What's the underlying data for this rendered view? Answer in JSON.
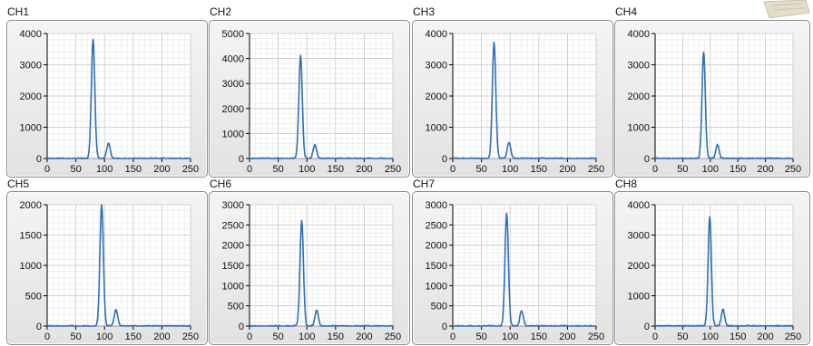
{
  "colors": {
    "trace": "#2e6fb5",
    "plot_bg": "#ffffff",
    "grid_major": "#c8c8c8",
    "grid_minor": "#e8e8e8",
    "axis": "#000000"
  },
  "chart_data": [
    {
      "type": "line",
      "channel": "CH1",
      "xlim": [
        0,
        250
      ],
      "ylim": [
        0,
        4000
      ],
      "xticks": [
        0,
        50,
        100,
        150,
        200,
        250
      ],
      "yticks": [
        0,
        1000,
        2000,
        3000,
        4000
      ],
      "peaks": [
        {
          "x": 80,
          "y": 3820,
          "w": 3.0
        },
        {
          "x": 107,
          "y": 500,
          "w": 3.0
        }
      ]
    },
    {
      "type": "line",
      "channel": "CH2",
      "xlim": [
        0,
        250
      ],
      "ylim": [
        0,
        5000
      ],
      "xticks": [
        0,
        50,
        100,
        150,
        200,
        250
      ],
      "yticks": [
        0,
        1000,
        2000,
        3000,
        4000,
        5000
      ],
      "peaks": [
        {
          "x": 89,
          "y": 4120,
          "w": 3.0
        },
        {
          "x": 114,
          "y": 560,
          "w": 3.0
        }
      ]
    },
    {
      "type": "line",
      "channel": "CH3",
      "xlim": [
        0,
        250
      ],
      "ylim": [
        0,
        4000
      ],
      "xticks": [
        0,
        50,
        100,
        150,
        200,
        250
      ],
      "yticks": [
        0,
        1000,
        2000,
        3000,
        4000
      ],
      "peaks": [
        {
          "x": 72,
          "y": 3720,
          "w": 3.0
        },
        {
          "x": 98,
          "y": 520,
          "w": 3.0
        }
      ]
    },
    {
      "type": "line",
      "channel": "CH4",
      "xlim": [
        0,
        250
      ],
      "ylim": [
        0,
        4000
      ],
      "xticks": [
        0,
        50,
        100,
        150,
        200,
        250
      ],
      "yticks": [
        0,
        1000,
        2000,
        3000,
        4000
      ],
      "peaks": [
        {
          "x": 88,
          "y": 3420,
          "w": 3.0
        },
        {
          "x": 113,
          "y": 440,
          "w": 3.0
        }
      ]
    },
    {
      "type": "line",
      "channel": "CH5",
      "xlim": [
        0,
        250
      ],
      "ylim": [
        0,
        2000
      ],
      "xticks": [
        0,
        50,
        100,
        150,
        200,
        250
      ],
      "yticks": [
        0,
        500,
        1000,
        1500,
        2000
      ],
      "peaks": [
        {
          "x": 95,
          "y": 2000,
          "w": 3.0
        },
        {
          "x": 120,
          "y": 280,
          "w": 3.0
        }
      ]
    },
    {
      "type": "line",
      "channel": "CH6",
      "xlim": [
        0,
        250
      ],
      "ylim": [
        0,
        3000
      ],
      "xticks": [
        0,
        50,
        100,
        150,
        200,
        250
      ],
      "yticks": [
        0,
        500,
        1000,
        1500,
        2000,
        2500,
        3000
      ],
      "peaks": [
        {
          "x": 91,
          "y": 2620,
          "w": 3.0
        },
        {
          "x": 117,
          "y": 400,
          "w": 3.0
        }
      ]
    },
    {
      "type": "line",
      "channel": "CH7",
      "xlim": [
        0,
        250
      ],
      "ylim": [
        0,
        3000
      ],
      "xticks": [
        0,
        50,
        100,
        150,
        200,
        250
      ],
      "yticks": [
        0,
        500,
        1000,
        1500,
        2000,
        2500,
        3000
      ],
      "peaks": [
        {
          "x": 94,
          "y": 2780,
          "w": 3.0
        },
        {
          "x": 120,
          "y": 380,
          "w": 3.0
        }
      ]
    },
    {
      "type": "line",
      "channel": "CH8",
      "xlim": [
        0,
        250
      ],
      "ylim": [
        0,
        4000
      ],
      "xticks": [
        0,
        50,
        100,
        150,
        200,
        250
      ],
      "yticks": [
        0,
        1000,
        2000,
        3000,
        4000
      ],
      "peaks": [
        {
          "x": 99,
          "y": 3600,
          "w": 3.0
        },
        {
          "x": 123,
          "y": 560,
          "w": 3.0
        }
      ]
    }
  ]
}
